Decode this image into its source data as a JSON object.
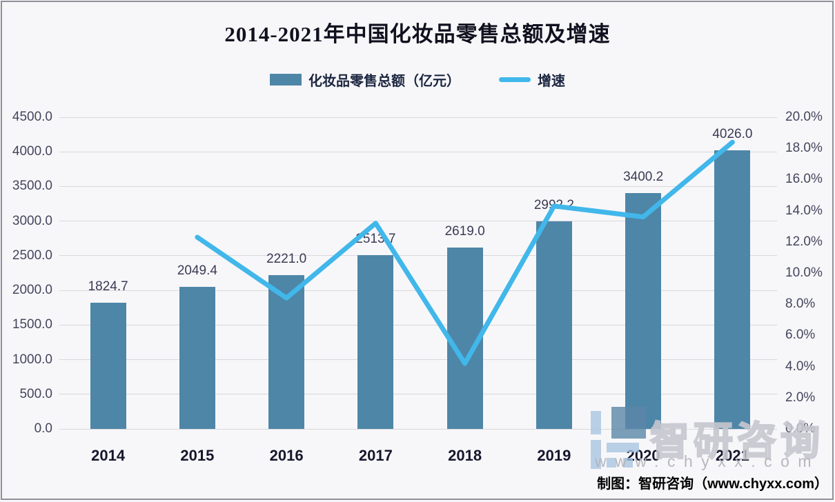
{
  "page": {
    "background": "#f7f7f9",
    "border_color": "#90909a"
  },
  "chart_data": {
    "type": "combo",
    "title": "2014-2021年中国化妆品零售总额及增速",
    "categories": [
      "2014",
      "2015",
      "2016",
      "2017",
      "2018",
      "2019",
      "2020",
      "2021"
    ],
    "series": [
      {
        "name": "化妆品零售总额（亿元）",
        "type": "bar",
        "axis": "left",
        "color": "#4e86a8",
        "values": [
          1824.7,
          2049.4,
          2221.0,
          2513.7,
          2619.0,
          2992.2,
          3400.2,
          4026.0
        ],
        "labels": [
          "1824.7",
          "2049.4",
          "2221.0",
          "2513.7",
          "2619.0",
          "2992.2",
          "3400.2",
          "4026.0"
        ]
      },
      {
        "name": "增速",
        "type": "line",
        "axis": "right",
        "color": "#41b7ea",
        "values": [
          null,
          12.3,
          8.4,
          13.2,
          4.2,
          14.3,
          13.6,
          18.4
        ]
      }
    ],
    "left_axis": {
      "min": 0,
      "max": 4500,
      "step": 500,
      "ticks": [
        "4500.0",
        "4000.0",
        "3500.0",
        "3000.0",
        "2500.0",
        "2000.0",
        "1500.0",
        "1000.0",
        "500.0",
        "0.0"
      ]
    },
    "right_axis": {
      "min": 0,
      "max": 20,
      "step": 2,
      "ticks": [
        "20.0%",
        "18.0%",
        "16.0%",
        "14.0%",
        "12.0%",
        "10.0%",
        "8.0%",
        "6.0%",
        "4.0%",
        "2.0%",
        "0.0%"
      ]
    },
    "grid": true,
    "legend_position": "top"
  },
  "legend": [
    {
      "label": "化妆品零售总额（亿元）",
      "swatch": "bar",
      "color": "#4e86a8"
    },
    {
      "label": "增速",
      "swatch": "line",
      "color": "#41b7ea"
    }
  ],
  "watermark": {
    "brand": "智研咨询",
    "url": "www.chyxx.com",
    "logo_color_light": "#a9c6e2",
    "logo_color_dark": "#5c87a8"
  },
  "footer": {
    "credit": "制图：智研咨询（www.chyxx.com）"
  }
}
